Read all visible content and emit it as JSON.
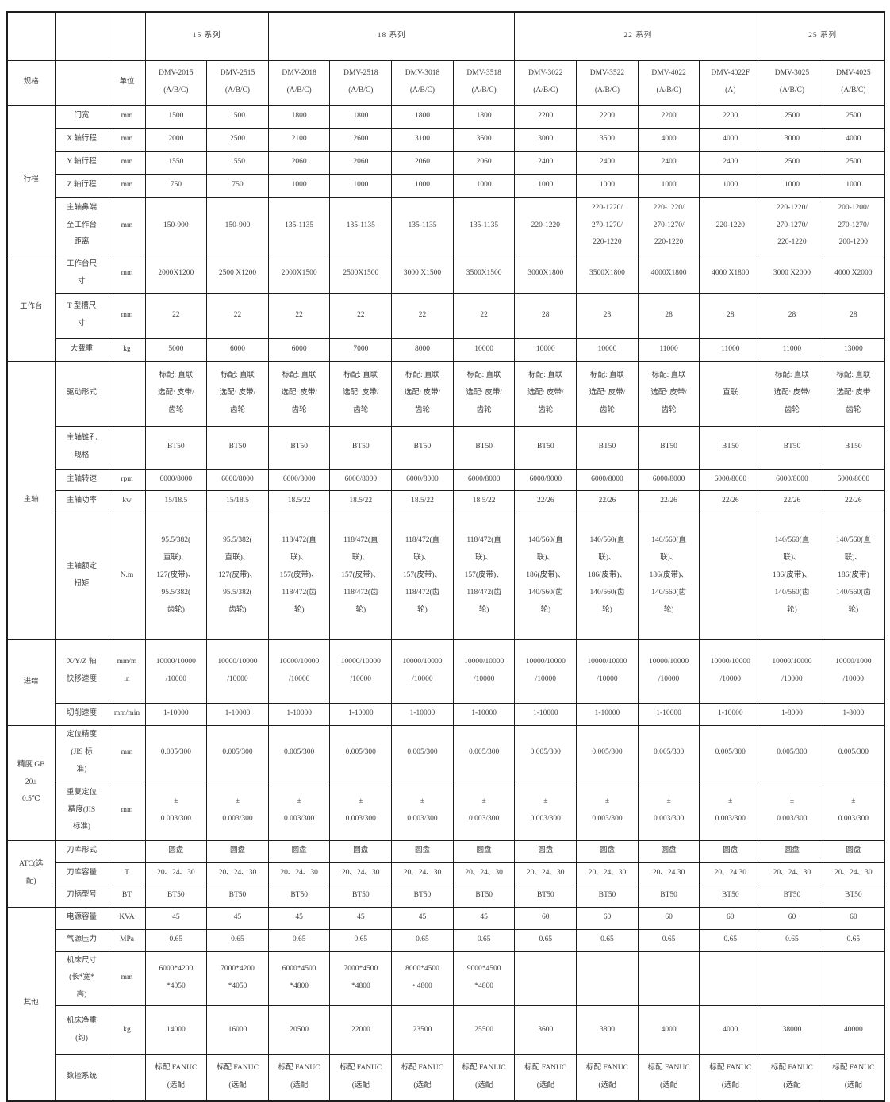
{
  "page": {
    "background": "#ffffff",
    "text_color": "#3d3d3d",
    "border_color": "#1d1d1d"
  },
  "table": {
    "header": {
      "spec_label": "规格",
      "unit_label": "单位"
    },
    "series_groups": [
      {
        "label": "15 系列",
        "span": 2
      },
      {
        "label": "18 系列",
        "span": 4
      },
      {
        "label": "22 系列",
        "span": 4
      },
      {
        "label": "25 系列",
        "span": 2
      }
    ],
    "models": [
      {
        "name": "DMV-2015",
        "variant": "(A/B/C)"
      },
      {
        "name": "DMV-2515",
        "variant": "(A/B/C)"
      },
      {
        "name": "DMV-2018",
        "variant": "(A/B/C)"
      },
      {
        "name": "DMV-2518",
        "variant": "(A/B/C)"
      },
      {
        "name": "DMV-3018",
        "variant": "(A/B/C)"
      },
      {
        "name": "DMV-3518",
        "variant": "(A/B/C)"
      },
      {
        "name": "DMV-3022",
        "variant": "(A/B/C)"
      },
      {
        "name": "DMV-3522",
        "variant": "(A/B/C)"
      },
      {
        "name": "DMV-4022",
        "variant": "(A/B/C)"
      },
      {
        "name": "DMV-4022F",
        "variant": "(A)"
      },
      {
        "name": "DMV-3025",
        "variant": "(A/B/C)"
      },
      {
        "name": "DMV-4025",
        "variant": "(A/B/C)"
      }
    ],
    "sections": [
      {
        "group": "行程",
        "rows": [
          {
            "param": "门宽",
            "unit": "mm",
            "values": [
              "1500",
              "1500",
              "1800",
              "1800",
              "1800",
              "1800",
              "2200",
              "2200",
              "2200",
              "2200",
              "2500",
              "2500"
            ]
          },
          {
            "param": "X 轴行程",
            "unit": "mm",
            "values": [
              "2000",
              "2500",
              "2100",
              "2600",
              "3100",
              "3600",
              "3000",
              "3500",
              "4000",
              "4000",
              "3000",
              "4000"
            ]
          },
          {
            "param": "Y 轴行程",
            "unit": "mm",
            "values": [
              "1550",
              "1550",
              "2060",
              "2060",
              "2060",
              "2060",
              "2400",
              "2400",
              "2400",
              "2400",
              "2500",
              "2500"
            ]
          },
          {
            "param": "Z 轴行程",
            "unit": "mm",
            "values": [
              "750",
              "750",
              "1000",
              "1000",
              "1000",
              "1000",
              "1000",
              "1000",
              "1000",
              "1000",
              "1000",
              "1000"
            ]
          },
          {
            "param": "主轴鼻端\n至工作台\n距离",
            "unit": "mm",
            "values": [
              "150-900",
              "150-900",
              "135-1135",
              "135-1135",
              "135-1135",
              "135-1135",
              "220-1220",
              "220-1220/\n270-1270/\n220-1220",
              "220-1220/\n270-1270/\n220-1220",
              "220-1220",
              "220-1220/\n270-1270/\n220-1220",
              "200-1200/\n270-1270/\n200-1200"
            ]
          }
        ]
      },
      {
        "group": "工作台",
        "rows": [
          {
            "param": "工作台尺\n寸",
            "unit": "mm",
            "values": [
              "2000X1200",
              "2500 X1200",
              "2000X1500",
              "2500X1500",
              "3000 X1500",
              "3500X1500",
              "3000X1800",
              "3500X1800",
              "4000X1800",
              "4000 X1800",
              "3000 X2000",
              "4000 X2000"
            ]
          },
          {
            "param": "T 型槽尺\n寸",
            "unit": "mm",
            "values": [
              "22",
              "22",
              "22",
              "22",
              "22",
              "22",
              "28",
              "28",
              "28",
              "28",
              "28",
              "28"
            ]
          },
          {
            "param": "大载重",
            "unit": "kg",
            "values": [
              "5000",
              "6000",
              "6000",
              "7000",
              "8000",
              "10000",
              "10000",
              "10000",
              "11000",
              "11000",
              "11000",
              "13000"
            ]
          }
        ]
      },
      {
        "group": "主轴",
        "rows": [
          {
            "param": "驱动形式",
            "unit": "",
            "values": [
              "标配: 直联\n选配: 皮带/\n齿轮",
              "标配: 直联\n选配: 皮带/\n齿轮",
              "标配: 直联\n选配: 皮带/\n齿轮",
              "标配: 直联\n选配: 皮带/\n齿轮",
              "标配: 直联\n选配: 皮带/\n齿轮",
              "标配: 直联\n选配: 皮带/\n齿轮",
              "标配: 直联\n选配: 皮带/\n齿轮",
              "标配: 直联\n选配: 皮带/\n齿轮",
              "标配: 直联\n选配: 皮带/\n齿轮",
              "直联",
              "标配: 直联\n选配: 皮带/\n齿轮",
              "标配: 直联\n选配: 皮带\n齿轮"
            ]
          },
          {
            "param": "主轴锥孔\n规格",
            "unit": "",
            "values": [
              "BT50",
              "BT50",
              "BT50",
              "BT50",
              "BT50",
              "BT50",
              "BT50",
              "BT50",
              "BT50",
              "BT50",
              "BT50",
              "BT50"
            ]
          },
          {
            "param": "主轴转速",
            "unit": "rpm",
            "values": [
              "6000/8000",
              "6000/8000",
              "6000/8000",
              "6000/8000",
              "6000/8000",
              "6000/8000",
              "6000/8000",
              "6000/8000",
              "6000/8000",
              "6000/8000",
              "6000/8000",
              "6000/8000"
            ]
          },
          {
            "param": "主轴功率",
            "unit": "kw",
            "values": [
              "15/18.5",
              "15/18.5",
              "18.5/22",
              "18.5/22",
              "18.5/22",
              "18.5/22",
              "22/26",
              "22/26",
              "22/26",
              "22/26",
              "22/26",
              "22/26"
            ]
          },
          {
            "param": "主轴额定\n扭矩",
            "unit": "N.m",
            "values": [
              "95.5/382(\n直联)、\n127(皮带)、\n95.5/382(\n齿轮)",
              "95.5/382(\n直联)、\n127(皮带)、\n95.5/382(\n齿轮)",
              "118/472(直\n联)、\n157(皮带)、\n118/472(齿\n轮)",
              "118/472(直\n联)、\n157(皮带)、\n118/472(齿\n轮)",
              "118/472(直\n联)、\n157(皮带)、\n118/472(齿\n轮)",
              "118/472(直\n联)、\n157(皮带)、\n118/472(齿\n轮)",
              "140/560(直\n联)、\n186(皮带)、\n140/560(齿\n轮)",
              "140/560(直\n联)、\n186(皮带)、\n140/560(齿\n轮)",
              "140/560(直\n联)、\n186(皮带)、\n140/560(齿\n轮)",
              "",
              "140/560(直\n联)、\n186(皮带)、\n140/560(齿\n轮)",
              "140/560(直\n联)、\n186(皮带)\n140/560(齿\n轮)"
            ]
          }
        ]
      },
      {
        "group": "进给",
        "rows": [
          {
            "param": "X/Y/Z 轴\n快移速度",
            "unit": "mm/m\nin",
            "values": [
              "10000/10000\n/10000",
              "10000/10000\n/10000",
              "10000/10000\n/10000",
              "10000/10000\n/10000",
              "10000/10000\n/10000",
              "10000/10000\n/10000",
              "10000/10000\n/10000",
              "10000/10000\n/10000",
              "10000/10000\n/10000",
              "10000/10000\n/10000",
              "10000/10000\n/10000",
              "10000/1000\n/10000"
            ]
          },
          {
            "param": "切削速度",
            "unit": "mm/min",
            "values": [
              "1-10000",
              "1-10000",
              "1-10000",
              "1-10000",
              "1-10000",
              "1-10000",
              "1-10000",
              "1-10000",
              "1-10000",
              "1-10000",
              "1-8000",
              "1-8000"
            ]
          }
        ]
      },
      {
        "group": "精度 GB\n20±\n0.5℃",
        "rows": [
          {
            "param": "定位精度\n(JIS 标\n准)",
            "unit": "mm",
            "values": [
              "0.005/300",
              "0.005/300",
              "0.005/300",
              "0.005/300",
              "0.005/300",
              "0.005/300",
              "0.005/300",
              "0.005/300",
              "0.005/300",
              "0.005/300",
              "0.005/300",
              "0.005/300"
            ]
          },
          {
            "param": "重复定位\n精度(JIS\n标准)",
            "unit": "mm",
            "values": [
              "±\n0.003/300",
              "±\n0.003/300",
              "±\n0.003/300",
              "±\n0.003/300",
              "±\n0.003/300",
              "±\n0.003/300",
              "±\n0.003/300",
              "±\n0.003/300",
              "±\n0.003/300",
              "±\n0.003/300",
              "±\n0.003/300",
              "±\n0.003/300"
            ]
          }
        ]
      },
      {
        "group": "ATC(选\n配)",
        "rows": [
          {
            "param": "刀库形式",
            "unit": "",
            "values": [
              "圆盘",
              "圆盘",
              "圆盘",
              "圆盘",
              "圆盘",
              "圆盘",
              "圆盘",
              "圆盘",
              "圆盘",
              "圆盘",
              "圆盘",
              "圆盘"
            ]
          },
          {
            "param": "刀库容量",
            "unit": "T",
            "values": [
              "20、24、30",
              "20、24、30",
              "20、24、30",
              "20、24、30",
              "20、24、30",
              "20、24、30",
              "20、24、30",
              "20、24、30",
              "20、24.30",
              "20、24.30",
              "20、24、30",
              "20、24、30"
            ]
          },
          {
            "param": "刀柄型号",
            "unit": "BT",
            "values": [
              "BT50",
              "BT50",
              "BT50",
              "BT50",
              "BT50",
              "BT50",
              "BT50",
              "BT50",
              "BT50",
              "BT50",
              "BT50",
              "BT50"
            ]
          }
        ]
      },
      {
        "group": "其他",
        "rows": [
          {
            "param": "电源容量",
            "unit": "KVA",
            "values": [
              "45",
              "45",
              "45",
              "45",
              "45",
              "45",
              "60",
              "60",
              "60",
              "60",
              "60",
              "60"
            ]
          },
          {
            "param": "气源压力",
            "unit": "MPa",
            "values": [
              "0.65",
              "0.65",
              "0.65",
              "0.65",
              "0.65",
              "0.65",
              "0.65",
              "0.65",
              "0.65",
              "0.65",
              "0.65",
              "0.65"
            ]
          },
          {
            "param": "机床尺寸\n(长*宽*\n高)",
            "unit": "mm",
            "values": [
              "6000*4200\n*4050",
              "7000*4200\n*4050",
              "6000*4500\n*4800",
              "7000*4500\n*4800",
              "8000*4500\n• 4800",
              "9000*4500\n*4800",
              "",
              "",
              "",
              "",
              "",
              ""
            ]
          },
          {
            "param": "机床净重\n(约)",
            "unit": "kg",
            "values": [
              "14000",
              "16000",
              "20500",
              "22000",
              "23500",
              "25500",
              "3600",
              "3800",
              "4000",
              "4000",
              "38000",
              "40000"
            ]
          },
          {
            "param": "数控系统",
            "unit": "",
            "values": [
              "标配 FANUC\n(选配",
              "标配 FANUC\n(选配",
              "标配 FANUC\n(选配",
              "标配 FANUC\n(选配",
              "标配 FANUC\n(选配",
              "标配 FANLIC\n(选配",
              "标配 FANUC\n(选配",
              "标配 FANUC\n(选配",
              "标配 FANUC\n(选配",
              "标配 FANUC\n(选配",
              "标配 FANUC\n(选配",
              "标配 FANUC\n(选配"
            ]
          }
        ]
      }
    ]
  }
}
